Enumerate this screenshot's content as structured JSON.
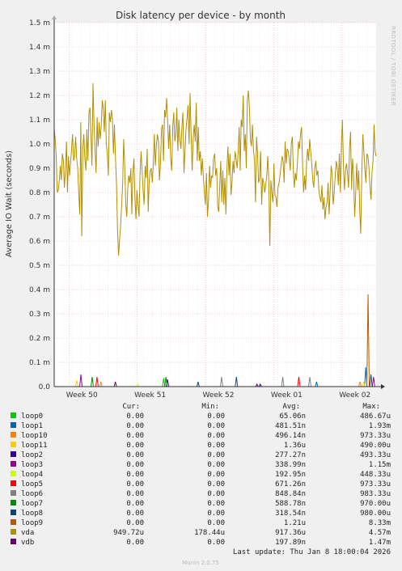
{
  "chart_data": {
    "type": "line",
    "title": "Disk latency per device - by month",
    "ylabel": "Average IO Wait (seconds)",
    "side_label": "RRDTOOL / TOBI OETIKER",
    "ylim": [
      0,
      0.0015
    ],
    "y_ticks": [
      {
        "value": 0,
        "label": "0.0"
      },
      {
        "value": 0.0001,
        "label": "0.1 m"
      },
      {
        "value": 0.0002,
        "label": "0.2 m"
      },
      {
        "value": 0.0003,
        "label": "0.3 m"
      },
      {
        "value": 0.0004,
        "label": "0.4 m"
      },
      {
        "value": 0.0005,
        "label": "0.5 m"
      },
      {
        "value": 0.0006,
        "label": "0.6 m"
      },
      {
        "value": 0.0007,
        "label": "0.7 m"
      },
      {
        "value": 0.0008,
        "label": "0.8 m"
      },
      {
        "value": 0.0009,
        "label": "0.9 m"
      },
      {
        "value": 0.001,
        "label": "1.0 m"
      },
      {
        "value": 0.0011,
        "label": "1.1 m"
      },
      {
        "value": 0.0012,
        "label": "1.2 m"
      },
      {
        "value": 0.0013,
        "label": "1.3 m"
      },
      {
        "value": 0.0014,
        "label": "1.4 m"
      },
      {
        "value": 0.0015,
        "label": "1.5 m"
      }
    ],
    "xlim": [
      0,
      1
    ],
    "x_ticks": [
      {
        "value": 0.126,
        "label": "Week 50"
      },
      {
        "value": 0.338,
        "label": "Week 51"
      },
      {
        "value": 0.55,
        "label": "Week 52"
      },
      {
        "value": 0.762,
        "label": "Week 01"
      },
      {
        "value": 0.974,
        "label": "Week 02"
      }
    ],
    "grid": true,
    "legend_headers": {
      "cur": "Cur:",
      "min": "Min:",
      "avg": "Avg:",
      "max": "Max:"
    },
    "series": [
      {
        "name": "loop0",
        "color": "#00cc00",
        "cur": "0.00",
        "min": "0.00",
        "avg": "65.06n",
        "max": "486.67u",
        "spikes": [
          [
            0.34,
            3.5e-05
          ]
        ]
      },
      {
        "name": "loop1",
        "color": "#0066b3",
        "cur": "0.00",
        "min": "0.00",
        "avg": "481.51n",
        "max": "1.93m",
        "spikes": [
          [
            0.815,
            2e-05
          ],
          [
            0.968,
            8e-05
          ]
        ]
      },
      {
        "name": "loop10",
        "color": "#ff8000",
        "cur": "0.00",
        "min": "0.00",
        "avg": "496.14n",
        "max": "973.33u",
        "spikes": [
          [
            0.145,
            2e-05
          ],
          [
            0.95,
            2e-05
          ]
        ]
      },
      {
        "name": "loop11",
        "color": "#ffcc00",
        "cur": "0.00",
        "min": "0.00",
        "avg": "1.36u",
        "max": "490.00u",
        "spikes": [
          [
            0.07,
            2.5e-05
          ],
          [
            0.962,
            2e-05
          ]
        ]
      },
      {
        "name": "loop2",
        "color": "#330099",
        "cur": "0.00",
        "min": "0.00",
        "avg": "277.27n",
        "max": "493.33u",
        "spikes": [
          [
            0.352,
            3e-05
          ],
          [
            0.64,
            1e-05
          ]
        ]
      },
      {
        "name": "loop3",
        "color": "#990099",
        "cur": "0.00",
        "min": "0.00",
        "avg": "338.99n",
        "max": "1.15m",
        "spikes": [
          [
            0.083,
            5e-05
          ],
          [
            0.992,
            4e-05
          ]
        ]
      },
      {
        "name": "loop4",
        "color": "#ccff00",
        "cur": "0.00",
        "min": "0.00",
        "avg": "192.95n",
        "max": "448.33u",
        "spikes": [
          [
            0.26,
            1e-05
          ]
        ]
      },
      {
        "name": "loop5",
        "color": "#ff0000",
        "cur": "0.00",
        "min": "0.00",
        "avg": "671.26n",
        "max": "973.33u",
        "spikes": [
          [
            0.133,
            4e-05
          ],
          [
            0.76,
            4e-05
          ]
        ]
      },
      {
        "name": "loop6",
        "color": "#808080",
        "cur": "0.00",
        "min": "0.00",
        "avg": "848.84n",
        "max": "983.33u",
        "spikes": [
          [
            0.52,
            4e-05
          ],
          [
            0.71,
            4e-05
          ],
          [
            0.794,
            4e-05
          ]
        ]
      },
      {
        "name": "loop7",
        "color": "#008f00",
        "cur": "0.00",
        "min": "0.00",
        "avg": "588.78n",
        "max": "970.00u",
        "spikes": [
          [
            0.347,
            4e-05
          ],
          [
            0.118,
            4e-05
          ]
        ]
      },
      {
        "name": "loop8",
        "color": "#00487d",
        "cur": "0.00",
        "min": "0.00",
        "avg": "318.54n",
        "max": "980.00u",
        "spikes": [
          [
            0.566,
            4e-05
          ],
          [
            0.447,
            2e-05
          ],
          [
            0.984,
            5e-05
          ]
        ]
      },
      {
        "name": "loop9",
        "color": "#b35a00",
        "cur": "0.00",
        "min": "0.00",
        "avg": "1.21u",
        "max": "8.33m",
        "spikes": [
          [
            0.975,
            0.00038
          ]
        ]
      },
      {
        "name": "vda",
        "color": "#b38f00",
        "cur": "949.72u",
        "min": "178.44u",
        "avg": "917.36u",
        "max": "4.57m",
        "values": [
          0.00106,
          0.00102,
          0.00095,
          0.0008,
          0.00081,
          0.00085,
          0.00091,
          0.00085,
          0.00096,
          0.00093,
          0.00082,
          0.00089,
          0.00101,
          0.0008,
          0.00095,
          0.00087,
          0.00092,
          0.00098,
          0.00104,
          0.00093,
          0.00095,
          0.00103,
          0.00094,
          0.0009,
          0.0008,
          0.00071,
          0.00109,
          0.00062,
          0.00098,
          0.00104,
          0.00094,
          0.00089,
          0.00106,
          0.00093,
          0.00113,
          0.00115,
          0.00103,
          0.00091,
          0.00125,
          0.00108,
          0.00098,
          0.00088,
          0.00111,
          0.00099,
          0.00109,
          0.00102,
          0.00107,
          0.00118,
          0.00115,
          0.00105,
          0.00118,
          0.001,
          0.00096,
          0.00087,
          0.00113,
          0.00109,
          0.00114,
          0.0011,
          0.00096,
          0.00108,
          0.00094,
          0.00083,
          0.00065,
          0.00054,
          0.00061,
          0.00066,
          0.00075,
          0.00084,
          0.00102,
          0.00091,
          0.00076,
          0.0007,
          0.00082,
          0.00087,
          0.00084,
          0.0009,
          0.00071,
          0.00088,
          0.00094,
          0.00078,
          0.00069,
          0.00081,
          0.00075,
          0.0007,
          0.00087,
          0.00097,
          0.00089,
          0.00081,
          0.00075,
          0.00091,
          0.00086,
          0.00098,
          0.00072,
          0.00085,
          0.00089,
          0.0009,
          0.00084,
          0.00092,
          0.00104,
          0.00091,
          0.00099,
          0.00104,
          0.00101,
          0.00085,
          0.00092,
          0.00106,
          0.00108,
          0.00093,
          0.00114,
          0.00111,
          0.00119,
          0.0011,
          0.00098,
          0.00108,
          0.00094,
          0.00089,
          0.00107,
          0.00113,
          0.00101,
          0.00104,
          0.00115,
          0.00097,
          0.0011,
          0.00102,
          0.00098,
          0.00107,
          0.00113,
          0.00088,
          0.00097,
          0.00106,
          0.00111,
          0.00116,
          0.001,
          0.00121,
          0.00104,
          0.00089,
          0.00102,
          0.00108,
          0.00101,
          0.00117,
          0.00093,
          0.00107,
          0.00093,
          0.00097,
          0.00087,
          0.00094,
          0.00086,
          0.0008,
          0.00075,
          0.00088,
          0.0007,
          0.00077,
          0.00091,
          0.00082,
          0.00087,
          0.00086,
          0.00094,
          0.00096,
          0.00087,
          0.0009,
          0.00074,
          0.00072,
          0.00083,
          0.00093,
          0.00076,
          0.00089,
          0.00075,
          0.00086,
          0.00071,
          0.00089,
          0.00099,
          0.00087,
          0.00096,
          0.00079,
          0.00084,
          0.00093,
          0.00088,
          0.00097,
          0.00094,
          0.0009,
          0.00096,
          0.00107,
          0.00089,
          0.0011,
          0.00107,
          0.0012,
          0.00097,
          0.00104,
          0.0009,
          0.00118,
          0.00122,
          0.00115,
          0.00102,
          0.00099,
          0.00108,
          0.00097,
          0.00094,
          0.00076,
          0.00103,
          0.00096,
          0.00084,
          0.00086,
          0.00097,
          0.00075,
          0.00086,
          0.00084,
          0.0008,
          0.00083,
          0.00087,
          0.00095,
          0.00085,
          0.00058,
          0.00085,
          0.0008,
          0.00076,
          0.00092,
          0.00079,
          0.00078,
          0.00074,
          0.00082,
          0.00084,
          0.00087,
          0.00091,
          0.00095,
          0.00093,
          0.00084,
          0.00101,
          0.00092,
          0.00098,
          0.00097,
          0.00094,
          0.00089,
          0.001,
          0.00103,
          0.00089,
          0.00082,
          0.00088,
          0.00085,
          0.00092,
          0.00101,
          0.00098,
          0.00104,
          0.00107,
          0.00093,
          0.0008,
          0.00087,
          0.00081,
          0.00093,
          0.00098,
          0.00093,
          0.00102,
          0.00097,
          0.00092,
          0.00085,
          0.00082,
          0.0009,
          0.00093,
          0.00087,
          0.00089,
          0.00081,
          0.00078,
          0.00076,
          0.00083,
          0.00073,
          0.00078,
          0.00069,
          0.00074,
          0.00076,
          0.00084,
          0.00071,
          0.0008,
          0.00091,
          0.00088,
          0.00075,
          0.0008,
          0.00087,
          0.00093,
          0.0009,
          0.00083,
          0.00096,
          0.0008,
          0.00098,
          0.0011,
          0.00091,
          0.00081,
          0.00089,
          0.00092,
          0.00088,
          0.00082,
          0.00098,
          0.00105,
          0.00081,
          0.00094,
          0.00087,
          0.0007,
          0.00079,
          0.00092,
          0.00081,
          0.00089,
          0.00072,
          0.00063,
          0.00088,
          0.00104,
          0.00097,
          0.0009,
          0.00084,
          0.00096,
          0.00095,
          0.0009,
          0.00083,
          0.00077,
          0.00088,
          0.00093,
          0.00108,
          0.00097,
          0.00095
        ]
      },
      {
        "name": "vdb",
        "color": "#6b006b",
        "cur": "0.00",
        "min": "0.00",
        "avg": "197.89n",
        "max": "1.47m",
        "spikes": [
          [
            0.19,
            2e-05
          ],
          [
            0.63,
            1e-05
          ]
        ]
      }
    ]
  },
  "footer": {
    "last_update": "Last update: Thu Jan  8 18:00:04 2026",
    "version": "Munin 2.0.75"
  }
}
